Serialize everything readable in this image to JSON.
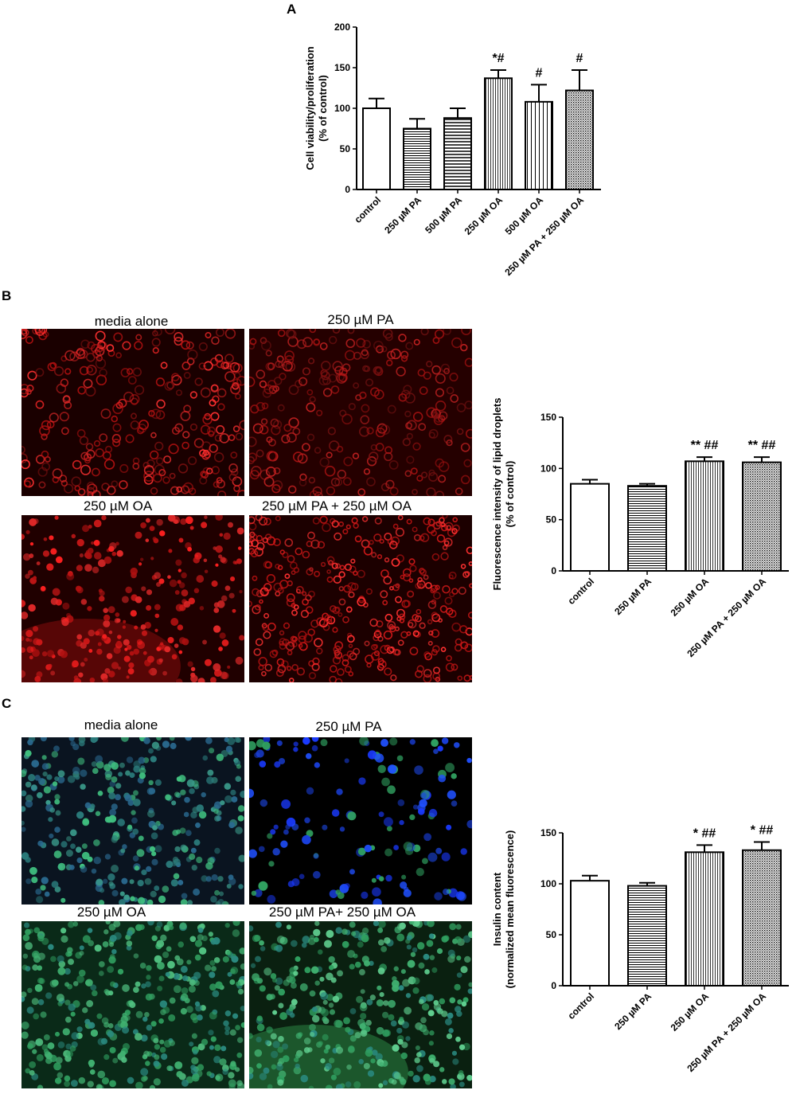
{
  "panels": {
    "a": {
      "letter": "A"
    },
    "b": {
      "letter": "B",
      "images": [
        {
          "label": "media alone"
        },
        {
          "label": "250 µM PA"
        },
        {
          "label": "250 µM OA"
        },
        {
          "label": "250 µM PA + 250 µM OA"
        }
      ]
    },
    "c": {
      "letter": "C",
      "images": [
        {
          "label": "media alone"
        },
        {
          "label": "250 µM PA"
        },
        {
          "label": "250 µM OA"
        },
        {
          "label": "250 µM PA+ 250 µM OA"
        }
      ]
    }
  },
  "chart_data": [
    {
      "type": "bar",
      "ylabel_lines": [
        "Cell viability/proliferation",
        "(% of control)"
      ],
      "categories": [
        "control",
        "250 µM PA",
        "500 µM PA",
        "250 µM OA",
        "500 µM OA",
        "250 µM PA + 250 µM OA"
      ],
      "values": [
        100,
        75,
        88,
        137,
        108,
        122
      ],
      "errors": [
        12,
        12,
        12,
        10,
        21,
        25
      ],
      "annotations": [
        "",
        "",
        "",
        "*#",
        "#",
        "#"
      ],
      "ylim": [
        0,
        200
      ],
      "yticks": [
        0,
        50,
        100,
        150,
        200
      ],
      "patterns": [
        "none",
        "hlines",
        "hlines-wide",
        "vlines",
        "vlines-wide",
        "dots"
      ]
    },
    {
      "type": "bar",
      "ylabel_lines": [
        "Fluorescence intensity of lipid droplets",
        "(% of control)"
      ],
      "categories": [
        "control",
        "250 µM PA",
        "250 µM OA",
        "250 µM PA + 250 µM OA"
      ],
      "values": [
        85,
        83,
        107,
        106
      ],
      "errors": [
        4,
        2,
        4,
        5
      ],
      "annotations": [
        "",
        "",
        "** ##",
        "** ##"
      ],
      "ylim": [
        0,
        150
      ],
      "yticks": [
        0,
        50,
        100,
        150
      ],
      "patterns": [
        "none",
        "hlines",
        "vlines",
        "dots"
      ]
    },
    {
      "type": "bar",
      "ylabel_lines": [
        "Insulin content",
        "(normalized mean fluorescence)"
      ],
      "categories": [
        "control",
        "250 µM PA",
        "250 µM OA",
        "250 µM PA + 250 µM OA"
      ],
      "values": [
        103,
        98,
        131,
        133
      ],
      "errors": [
        5,
        3,
        7,
        8
      ],
      "annotations": [
        "",
        "",
        "* ##",
        "* ##"
      ],
      "ylim": [
        0,
        150
      ],
      "yticks": [
        0,
        50,
        100,
        150
      ],
      "patterns": [
        "none",
        "hlines",
        "vlines",
        "dots"
      ]
    }
  ]
}
